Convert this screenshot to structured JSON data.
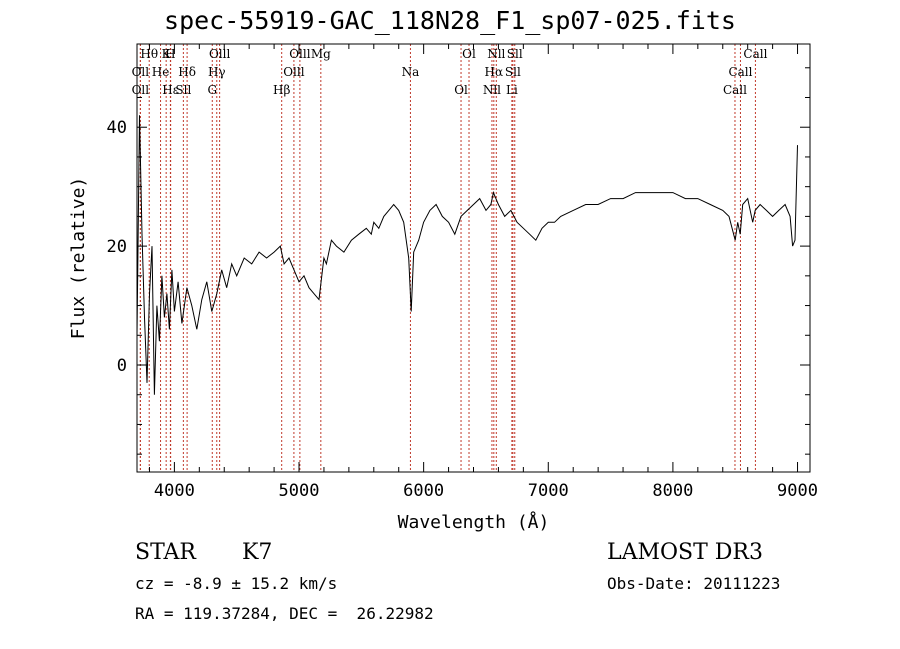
{
  "chart_data": {
    "type": "line",
    "title": "spec-55919-GAC_118N28_F1_sp07-025.fits",
    "xlabel": "Wavelength (Å)",
    "ylabel": "Flux (relative)",
    "xlim": [
      3700,
      9100
    ],
    "ylim": [
      -18,
      54
    ],
    "xticks": [
      4000,
      5000,
      6000,
      7000,
      8000,
      9000
    ],
    "yticks": [
      0,
      20,
      40
    ],
    "series": [
      {
        "name": "spectrum",
        "x": [
          3700,
          3720,
          3740,
          3760,
          3780,
          3800,
          3820,
          3840,
          3860,
          3880,
          3900,
          3920,
          3940,
          3960,
          3980,
          4000,
          4030,
          4060,
          4100,
          4140,
          4180,
          4220,
          4260,
          4300,
          4340,
          4380,
          4420,
          4460,
          4500,
          4560,
          4620,
          4680,
          4740,
          4800,
          4850,
          4880,
          4920,
          4960,
          5000,
          5040,
          5080,
          5120,
          5160,
          5200,
          5220,
          5260,
          5300,
          5360,
          5420,
          5480,
          5540,
          5580,
          5600,
          5640,
          5680,
          5720,
          5760,
          5800,
          5840,
          5880,
          5900,
          5920,
          5960,
          6000,
          6050,
          6100,
          6150,
          6200,
          6250,
          6300,
          6350,
          6400,
          6450,
          6500,
          6540,
          6560,
          6580,
          6600,
          6650,
          6700,
          6750,
          6800,
          6850,
          6900,
          6950,
          7000,
          7050,
          7100,
          7200,
          7300,
          7400,
          7500,
          7600,
          7700,
          7800,
          7900,
          8000,
          8100,
          8200,
          8300,
          8400,
          8450,
          8500,
          8520,
          8540,
          8560,
          8600,
          8640,
          8660,
          8700,
          8750,
          8800,
          8850,
          8900,
          8940,
          8960,
          8980,
          9000
        ],
        "y": [
          5,
          42,
          22,
          8,
          -3,
          12,
          20,
          -5,
          10,
          4,
          15,
          8,
          12,
          6,
          16,
          9,
          14,
          7,
          13,
          10,
          6,
          11,
          14,
          9,
          12,
          16,
          13,
          17,
          15,
          18,
          17,
          19,
          18,
          19,
          20,
          17,
          18,
          16,
          14,
          15,
          13,
          12,
          11,
          18,
          17,
          21,
          20,
          19,
          21,
          22,
          23,
          22,
          24,
          23,
          25,
          26,
          27,
          26,
          24,
          18,
          9,
          19,
          21,
          24,
          26,
          27,
          25,
          24,
          22,
          25,
          26,
          27,
          28,
          26,
          27,
          29,
          28,
          27,
          25,
          26,
          24,
          23,
          22,
          21,
          23,
          24,
          24,
          25,
          26,
          27,
          27,
          28,
          28,
          29,
          29,
          29,
          29,
          28,
          28,
          27,
          26,
          25,
          21,
          24,
          22,
          27,
          28,
          24,
          26,
          27,
          26,
          25,
          26,
          27,
          25,
          20,
          21,
          37
        ],
        "color": "#000000"
      }
    ],
    "line_color": "#c0392b",
    "lines": [
      {
        "label": "Hθ",
        "x": 3798
      },
      {
        "label": "Oll",
        "x": 3727
      },
      {
        "label": "Oll",
        "x": 3727
      },
      {
        "label": "K",
        "x": 3934
      },
      {
        "label": "He",
        "x": 3889
      },
      {
        "label": "Hε",
        "x": 3970
      },
      {
        "label": "H",
        "x": 3968
      },
      {
        "label": "Hδ",
        "x": 4102
      },
      {
        "label": "Sll",
        "x": 4072
      },
      {
        "label": "Olll",
        "x": 4363
      },
      {
        "label": "Hγ",
        "x": 4340
      },
      {
        "label": "G",
        "x": 4304
      },
      {
        "label": "Olll",
        "x": 5007
      },
      {
        "label": "Olll",
        "x": 4959
      },
      {
        "label": "Hβ",
        "x": 4861
      },
      {
        "label": "Mg",
        "x": 5175
      },
      {
        "label": "Na",
        "x": 5894
      },
      {
        "label": "Ol",
        "x": 6300
      },
      {
        "label": "Ol",
        "x": 6364
      },
      {
        "label": "Hα",
        "x": 6563
      },
      {
        "label": "Nll",
        "x": 6548
      },
      {
        "label": "Nll",
        "x": 6583
      },
      {
        "label": "Sll",
        "x": 6716
      },
      {
        "label": "Li",
        "x": 6708
      },
      {
        "label": "Sll",
        "x": 6731
      },
      {
        "label": "Call",
        "x": 8542
      },
      {
        "label": "Call",
        "x": 8498
      },
      {
        "label": "Call",
        "x": 8662
      }
    ]
  },
  "info": {
    "object_class": "STAR",
    "subclass": "K7",
    "survey": "LAMOST DR3",
    "redshift": "cz = -8.9 ± 15.2 km/s",
    "obs_date": "Obs-Date: 20111223",
    "coords": "RA = 119.37284, DEC =  26.22982"
  }
}
